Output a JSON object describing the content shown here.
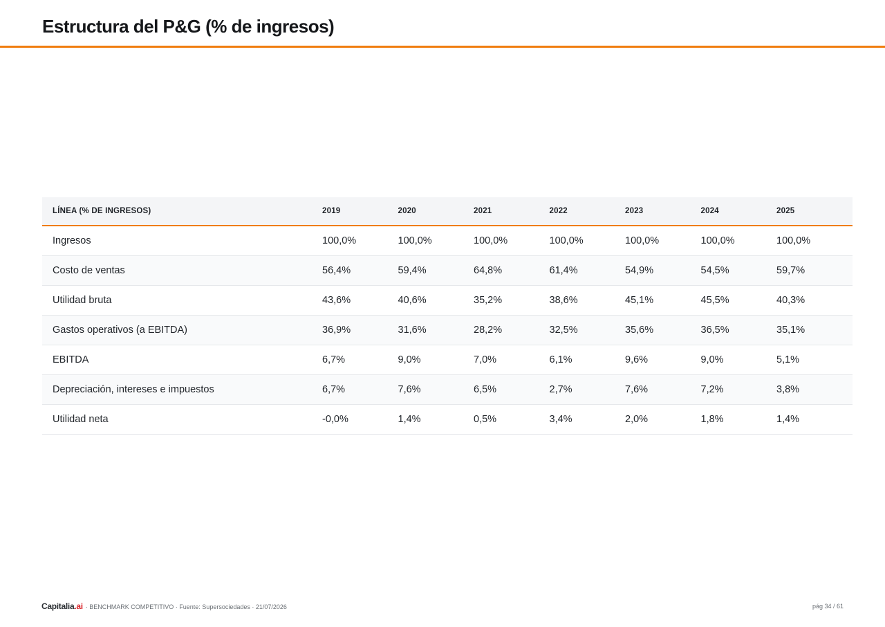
{
  "page": {
    "title": "Estructura del P&G (% de ingresos)"
  },
  "table": {
    "headers": [
      "LÍNEA (% DE INGRESOS)",
      "2019",
      "2020",
      "2021",
      "2022",
      "2023",
      "2024",
      "2025"
    ],
    "rows": [
      [
        "Ingresos",
        "100,0%",
        "100,0%",
        "100,0%",
        "100,0%",
        "100,0%",
        "100,0%",
        "100,0%"
      ],
      [
        "Costo de ventas",
        "56,4%",
        "59,4%",
        "64,8%",
        "61,4%",
        "54,9%",
        "54,5%",
        "59,7%"
      ],
      [
        "Utilidad bruta",
        "43,6%",
        "40,6%",
        "35,2%",
        "38,6%",
        "45,1%",
        "45,5%",
        "40,3%"
      ],
      [
        "Gastos operativos (a EBITDA)",
        "36,9%",
        "31,6%",
        "28,2%",
        "32,5%",
        "35,6%",
        "36,5%",
        "35,1%"
      ],
      [
        "EBITDA",
        "6,7%",
        "9,0%",
        "7,0%",
        "6,1%",
        "9,6%",
        "9,0%",
        "5,1%"
      ],
      [
        "Depreciación, intereses e impuestos",
        "6,7%",
        "7,6%",
        "6,5%",
        "2,7%",
        "7,6%",
        "7,2%",
        "3,8%"
      ],
      [
        "Utilidad neta",
        "-0,0%",
        "1,4%",
        "0,5%",
        "3,4%",
        "2,0%",
        "1,8%",
        "1,4%"
      ]
    ]
  },
  "footer": {
    "logo_main": "Capitalia",
    "logo_suffix": ".ai",
    "meta": "· BENCHMARK COMPETITIVO · Fuente: Supersociedades · 21/07/2026",
    "page_label": "pág 34 / 61"
  },
  "colors": {
    "accent": "#f07d0f",
    "logo_accent": "#d9262c",
    "header_bg": "#f4f5f7"
  }
}
